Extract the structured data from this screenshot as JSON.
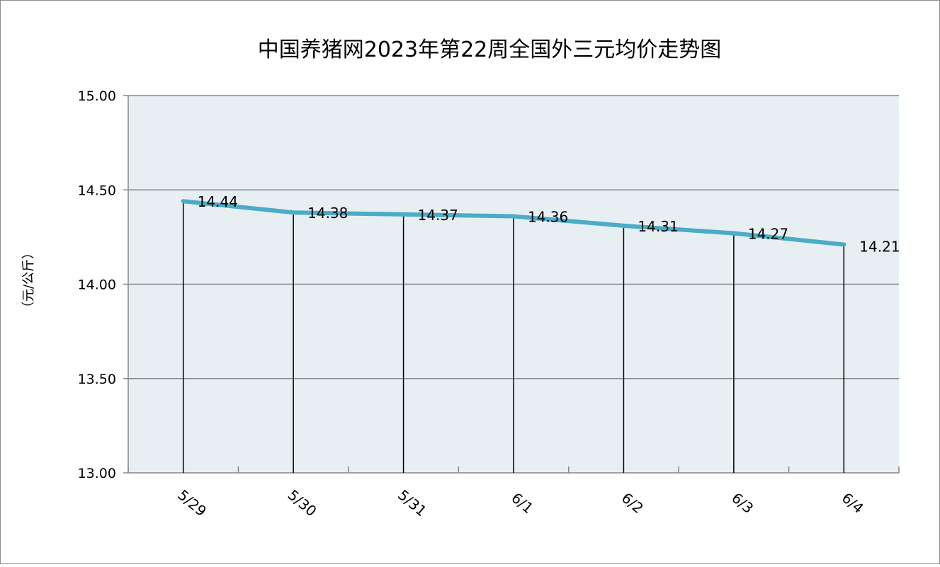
{
  "chart_data": {
    "type": "line",
    "title": "中国养猪网2023年第22周全国外三元均价走势图",
    "ylabel": "（元/公斤）",
    "xlabel": "",
    "categories": [
      "5/29",
      "5/30",
      "5/31",
      "6/1",
      "6/2",
      "6/3",
      "6/4"
    ],
    "values": [
      14.44,
      14.38,
      14.37,
      14.36,
      14.31,
      14.27,
      14.21
    ],
    "value_labels": [
      "14.44",
      "14.38",
      "14.37",
      "14.36",
      "14.31",
      "14.27",
      "14.21"
    ],
    "ylim": [
      13.0,
      15.0
    ],
    "yticks": [
      "13.00",
      "13.50",
      "14.00",
      "14.50",
      "15.00"
    ],
    "ytick_values": [
      13.0,
      13.5,
      14.0,
      14.5,
      15.0
    ],
    "grid": true,
    "drop_lines": true,
    "legend": "none",
    "colors": {
      "line": "#4bacc6",
      "plot_background": "#e8eff3",
      "gridline": "#868686",
      "drop_line": "#000000"
    }
  }
}
